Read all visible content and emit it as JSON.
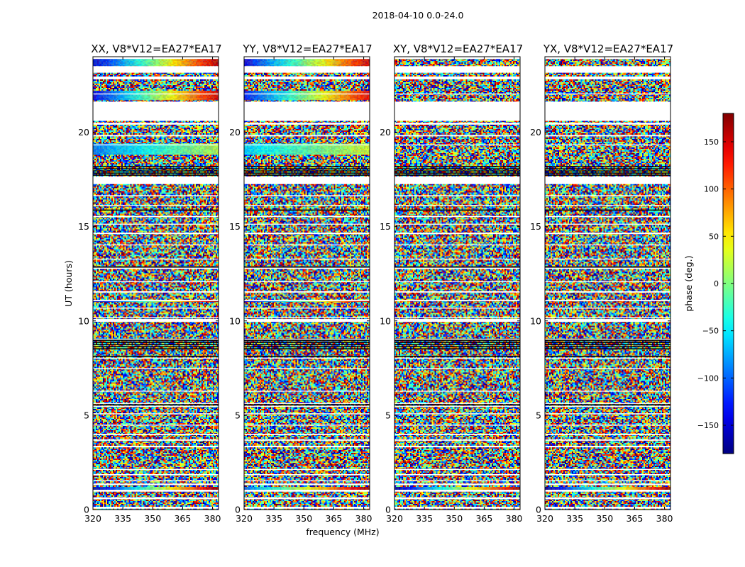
{
  "chart_data": {
    "type": "heatmap",
    "suptitle": "2018-04-10 0.0-24.0",
    "xlabel": "frequency (MHz)",
    "ylabel": "UT (hours)",
    "xlim": [
      320,
      383
    ],
    "ylim": [
      0,
      24
    ],
    "xticks": [
      "320",
      "335",
      "350",
      "365",
      "380"
    ],
    "xtick_values": [
      320,
      335,
      350,
      365,
      380
    ],
    "yticks": [
      "0",
      "5",
      "10",
      "15",
      "20"
    ],
    "ytick_values": [
      0,
      5,
      10,
      15,
      20
    ],
    "colorbar": {
      "label": "phase (deg.)",
      "range": [
        -180,
        180
      ],
      "colormap": "jet",
      "ticks": [
        "150",
        "100",
        "50",
        "0",
        "−50",
        "−100",
        "−150"
      ],
      "tick_values": [
        150,
        100,
        50,
        0,
        -50,
        -100,
        -150
      ]
    },
    "flagged_ut_bands": [
      [
        0.05,
        0.15
      ],
      [
        0.55,
        0.65
      ],
      [
        0.95,
        1.05
      ],
      [
        1.3,
        1.38
      ],
      [
        1.5,
        1.55
      ],
      [
        1.82,
        1.88
      ],
      [
        2.1,
        2.15
      ],
      [
        3.3,
        3.38
      ],
      [
        3.65,
        3.72
      ],
      [
        3.95,
        4.02
      ],
      [
        4.45,
        4.5
      ],
      [
        5.05,
        5.1
      ],
      [
        5.45,
        5.5
      ],
      [
        5.6,
        5.65
      ],
      [
        6.25,
        6.3
      ],
      [
        7.45,
        7.5
      ],
      [
        8.0,
        8.05
      ],
      [
        9.0,
        9.05
      ],
      [
        9.95,
        10.1
      ],
      [
        10.15,
        10.2
      ],
      [
        10.65,
        10.7
      ],
      [
        11.05,
        11.12
      ],
      [
        11.5,
        11.57
      ],
      [
        12.05,
        12.1
      ],
      [
        12.75,
        12.85
      ],
      [
        13.25,
        13.3
      ],
      [
        14.0,
        14.05
      ],
      [
        14.6,
        14.67
      ],
      [
        15.1,
        15.15
      ],
      [
        15.5,
        15.56
      ],
      [
        16.1,
        16.15
      ],
      [
        16.6,
        16.66
      ],
      [
        17.25,
        17.65
      ],
      [
        19.3,
        19.35
      ],
      [
        19.78,
        19.85
      ],
      [
        20.4,
        20.5
      ],
      [
        20.6,
        21.62
      ],
      [
        22.0,
        22.05
      ],
      [
        22.8,
        22.95
      ],
      [
        23.15,
        23.5
      ],
      [
        23.88,
        24.0
      ]
    ],
    "dense_black_ut_bands": [
      [
        5.52,
        5.58
      ],
      [
        8.1,
        8.15
      ],
      [
        8.5,
        9.0
      ],
      [
        17.7,
        18.2
      ],
      [
        15.85,
        15.9
      ],
      [
        12.8,
        12.88
      ]
    ],
    "panels": [
      {
        "title": "XX, V8*V12=EA27*EA17",
        "series": [
          {
            "ut": [
              18.8,
              19.4
            ],
            "phase_start": -90,
            "phase_end": 20
          },
          {
            "ut": [
              21.7,
              22.2
            ],
            "phase_start": -140,
            "phase_end": 150
          },
          {
            "ut": [
              23.5,
              23.9
            ],
            "phase_start": -150,
            "phase_end": 160
          },
          {
            "ut": [
              11.0,
              11.1
            ],
            "phase_start": -160,
            "phase_end": 170
          },
          {
            "ut": [
              1.05,
              1.2
            ],
            "phase_start": -165,
            "phase_end": 175
          }
        ]
      },
      {
        "title": "YY, V8*V12=EA27*EA17",
        "series": [
          {
            "ut": [
              18.8,
              19.4
            ],
            "phase_start": -60,
            "phase_end": 30
          },
          {
            "ut": [
              21.7,
              22.2
            ],
            "phase_start": -130,
            "phase_end": 140
          },
          {
            "ut": [
              23.5,
              23.9
            ],
            "phase_start": -140,
            "phase_end": 150
          },
          {
            "ut": [
              11.0,
              11.1
            ],
            "phase_start": -150,
            "phase_end": 160
          },
          {
            "ut": [
              1.05,
              1.2
            ],
            "phase_start": -100,
            "phase_end": 170
          }
        ]
      },
      {
        "title": "XY, V8*V12=EA27*EA17",
        "series": [
          {
            "ut": [
              1.05,
              1.2
            ],
            "phase_start": -170,
            "phase_end": 170
          }
        ]
      },
      {
        "title": "YX, V8*V12=EA27*EA17",
        "series": [
          {
            "ut": [
              1.05,
              1.2
            ],
            "phase_start": -170,
            "phase_end": 170
          }
        ]
      }
    ]
  }
}
